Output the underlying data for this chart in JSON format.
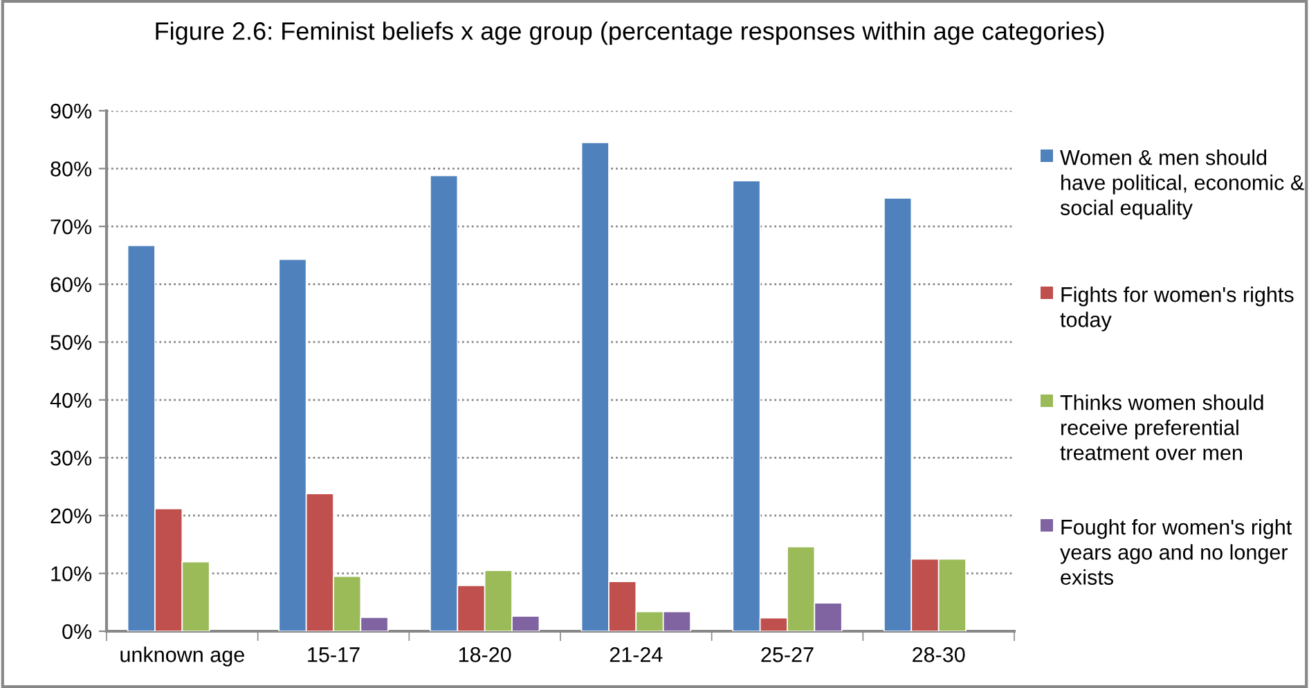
{
  "chart_data": {
    "type": "bar",
    "title": "Figure 2.6: Feminist beliefs x age group (percentage responses within age categories)",
    "categories": [
      "unknown age",
      "15-17",
      "18-20",
      "21-24",
      "25-27",
      "28-30"
    ],
    "series": [
      {
        "name": "Women & men should have political, economic & social equality",
        "color": "#4f81bd",
        "values": [
          66.7,
          64.3,
          78.8,
          84.5,
          77.9,
          74.9
        ]
      },
      {
        "name": "Fights for women's rights today",
        "color": "#c0504d",
        "values": [
          21.2,
          23.8,
          7.9,
          8.6,
          2.3,
          12.5
        ]
      },
      {
        "name": "Thinks women should receive preferential treatment over men",
        "color": "#9bbb59",
        "values": [
          12.0,
          9.5,
          10.5,
          3.4,
          14.6,
          12.5
        ]
      },
      {
        "name": "Fought for women's right years ago and no longer exists",
        "color": "#8064a2",
        "values": [
          null,
          2.4,
          2.6,
          3.4,
          4.9,
          null
        ]
      }
    ],
    "ylim": [
      0,
      90
    ],
    "yticks": [
      {
        "value": 0,
        "label": "0%"
      },
      {
        "value": 10,
        "label": "10%"
      },
      {
        "value": 20,
        "label": "20%"
      },
      {
        "value": 30,
        "label": "30%"
      },
      {
        "value": 40,
        "label": "40%"
      },
      {
        "value": 50,
        "label": "50%"
      },
      {
        "value": 60,
        "label": "60%"
      },
      {
        "value": 70,
        "label": "70%"
      },
      {
        "value": 80,
        "label": "80%"
      },
      {
        "value": 90,
        "label": "90%"
      }
    ],
    "grid": "y",
    "legend": "right"
  }
}
